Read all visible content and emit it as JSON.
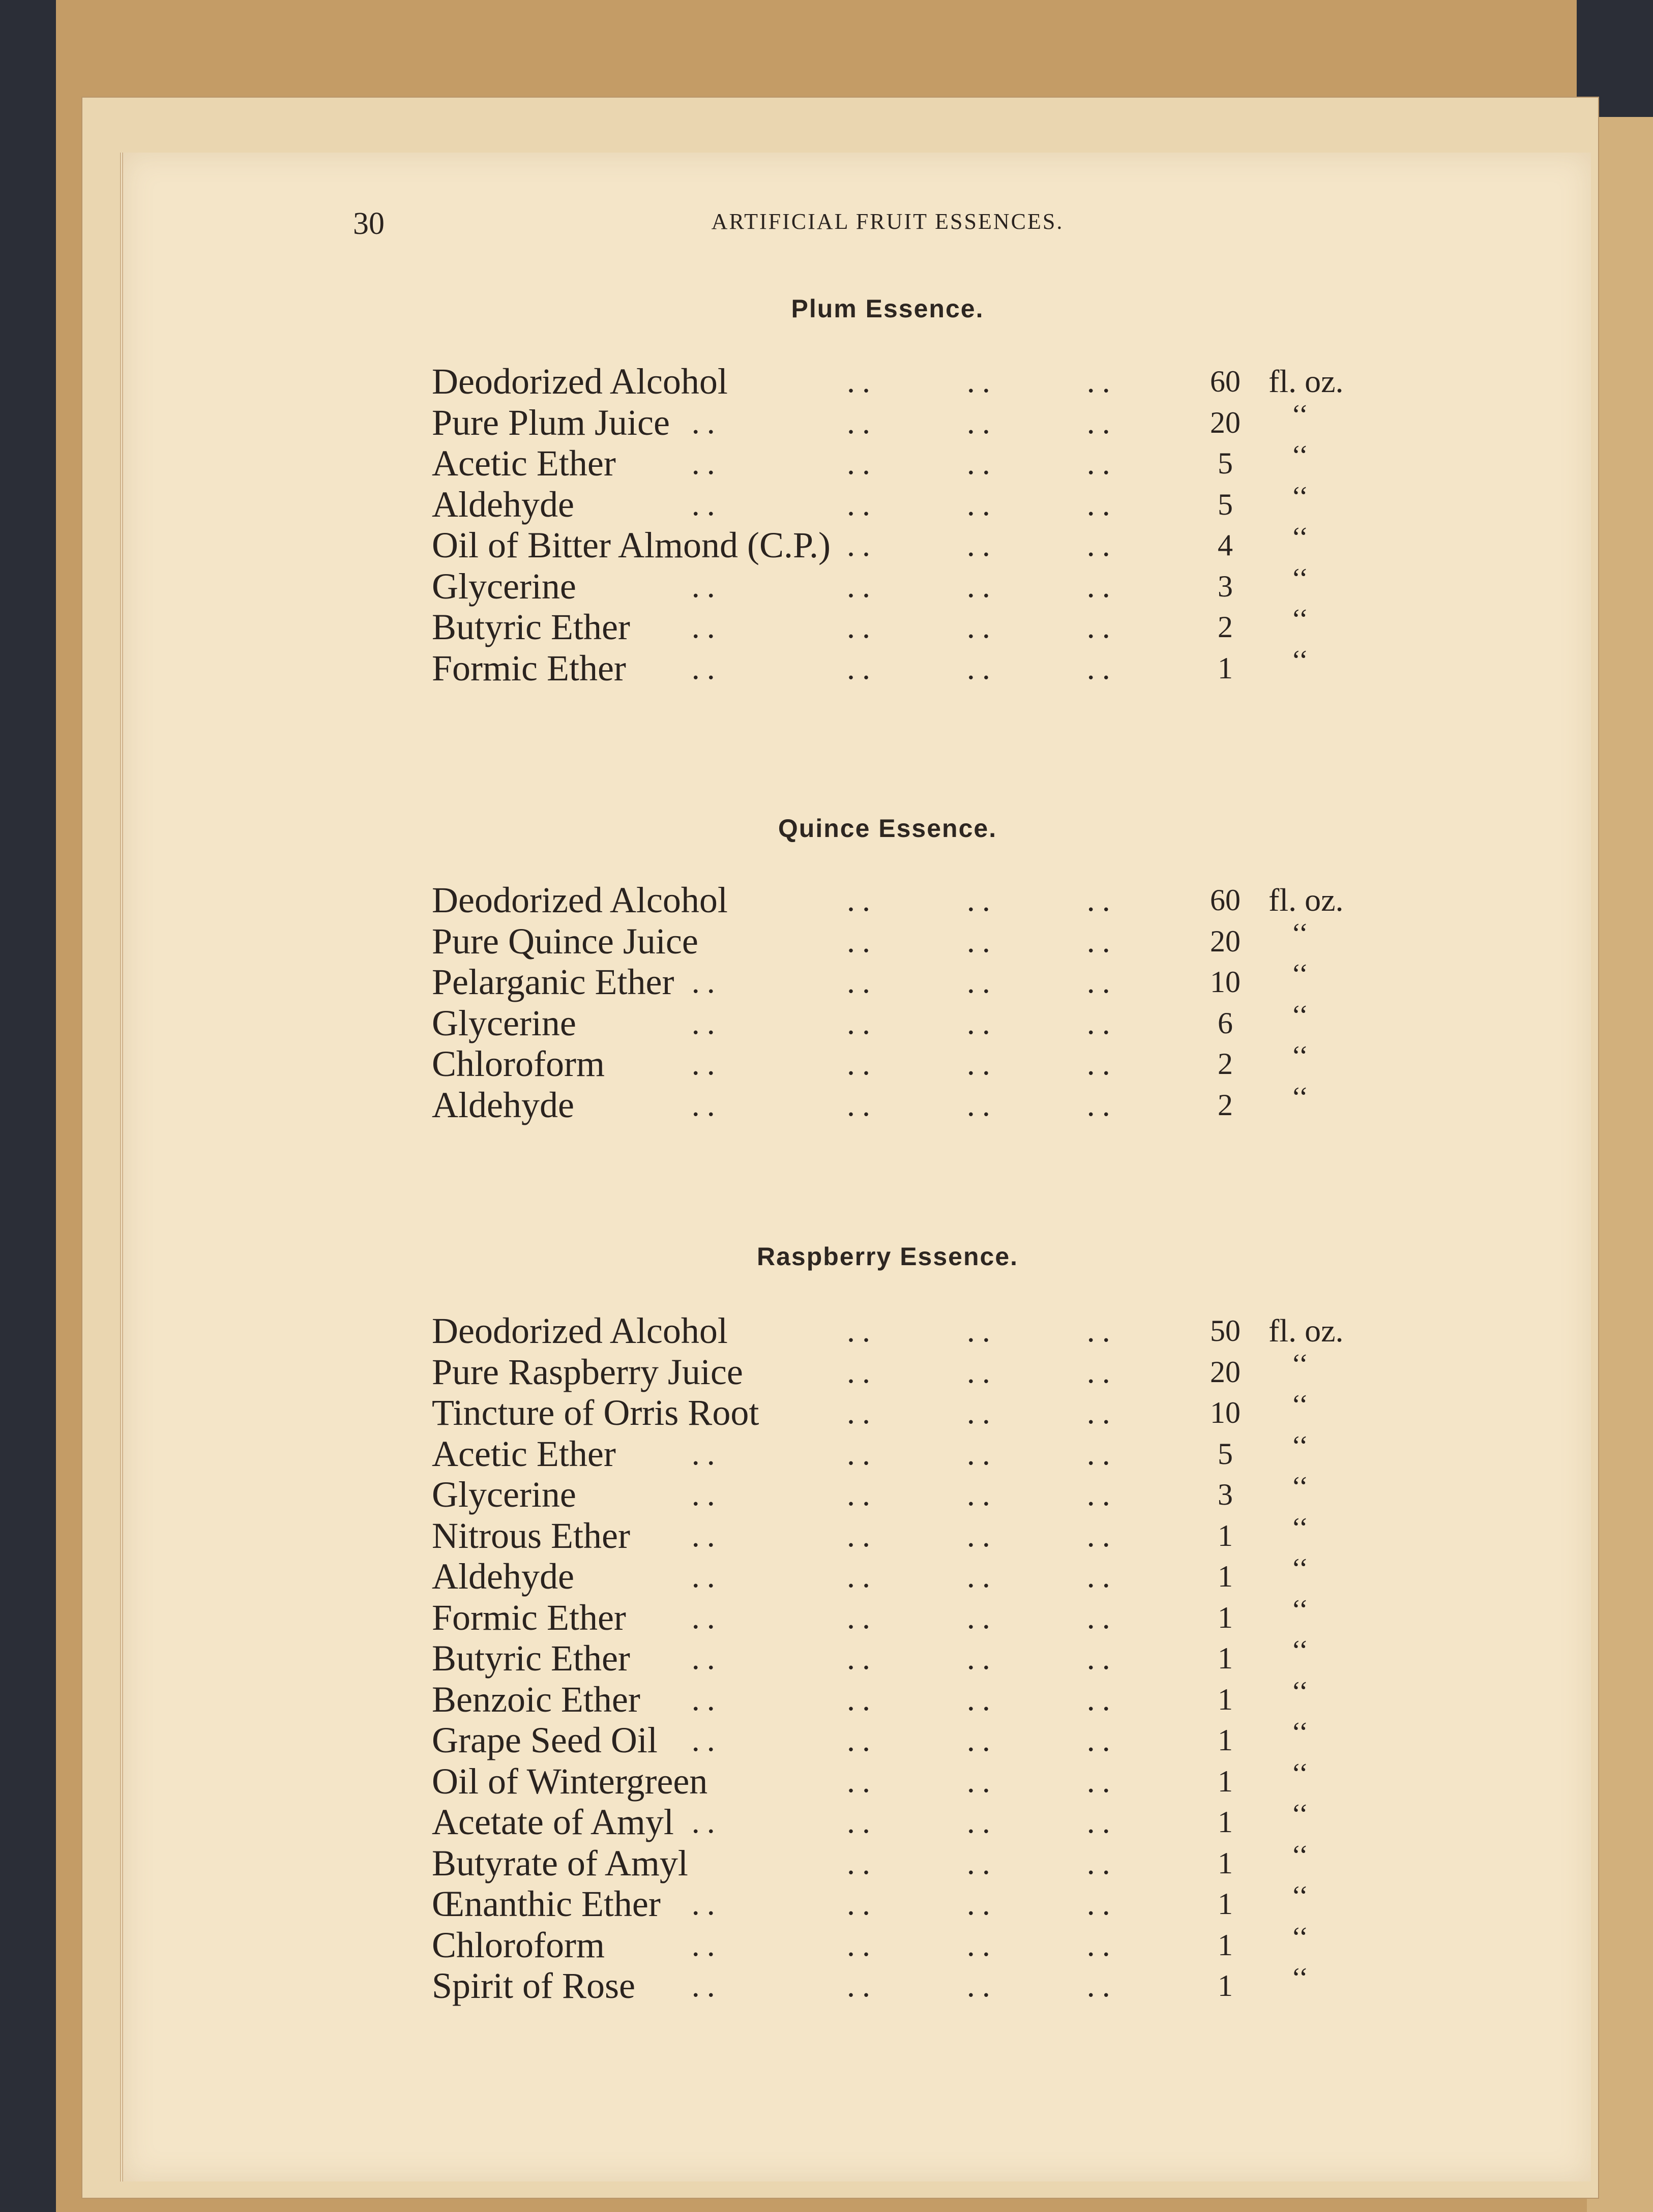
{
  "header": {
    "page_number": "30",
    "running_title": "Artificial Fruit Essences."
  },
  "unit_label": "fl. oz.",
  "ditto_mark": "‘‘",
  "sections": [
    {
      "title": "Plum Essence.",
      "items": [
        {
          "name": "Deodorized Alcohol",
          "amount": "60"
        },
        {
          "name": "Pure Plum Juice",
          "amount": "20"
        },
        {
          "name": "Acetic Ether",
          "amount": "5"
        },
        {
          "name": "Aldehyde",
          "amount": "5"
        },
        {
          "name": "Oil of Bitter Almond (C.P.)",
          "amount": "4"
        },
        {
          "name": "Glycerine",
          "amount": "3"
        },
        {
          "name": "Butyric Ether",
          "amount": "2"
        },
        {
          "name": "Formic Ether",
          "amount": "1"
        }
      ]
    },
    {
      "title": "Quince Essence.",
      "items": [
        {
          "name": "Deodorized Alcohol",
          "amount": "60"
        },
        {
          "name": "Pure Quince Juice",
          "amount": "20"
        },
        {
          "name": "Pelarganic Ether",
          "amount": "10"
        },
        {
          "name": "Glycerine",
          "amount": "6"
        },
        {
          "name": "Chloroform",
          "amount": "2"
        },
        {
          "name": "Aldehyde",
          "amount": "2"
        }
      ]
    },
    {
      "title": "Raspberry Essence.",
      "items": [
        {
          "name": "Deodorized Alcohol",
          "amount": "50"
        },
        {
          "name": "Pure Raspberry Juice",
          "amount": "20"
        },
        {
          "name": "Tincture of Orris Root",
          "amount": "10"
        },
        {
          "name": "Acetic Ether",
          "amount": "5"
        },
        {
          "name": "Glycerine",
          "amount": "3"
        },
        {
          "name": "Nitrous Ether",
          "amount": "1"
        },
        {
          "name": "Aldehyde",
          "amount": "1"
        },
        {
          "name": "Formic Ether",
          "amount": "1"
        },
        {
          "name": "Butyric Ether",
          "amount": "1"
        },
        {
          "name": "Benzoic Ether",
          "amount": "1"
        },
        {
          "name": "Grape Seed Oil",
          "amount": "1"
        },
        {
          "name": "Oil of Wintergreen",
          "amount": "1"
        },
        {
          "name": "Acetate of Amyl",
          "amount": "1"
        },
        {
          "name": "Butyrate of Amyl",
          "amount": "1"
        },
        {
          "name": "Œnanthic Ether",
          "amount": "1"
        },
        {
          "name": "Chloroform",
          "amount": "1"
        },
        {
          "name": "Spirit of Rose",
          "amount": "1"
        }
      ]
    }
  ],
  "colors": {
    "paper": "#f4e5c8",
    "ink": "#2a231f",
    "cover": "#c7a06b",
    "cloth": "#2b2e37"
  }
}
